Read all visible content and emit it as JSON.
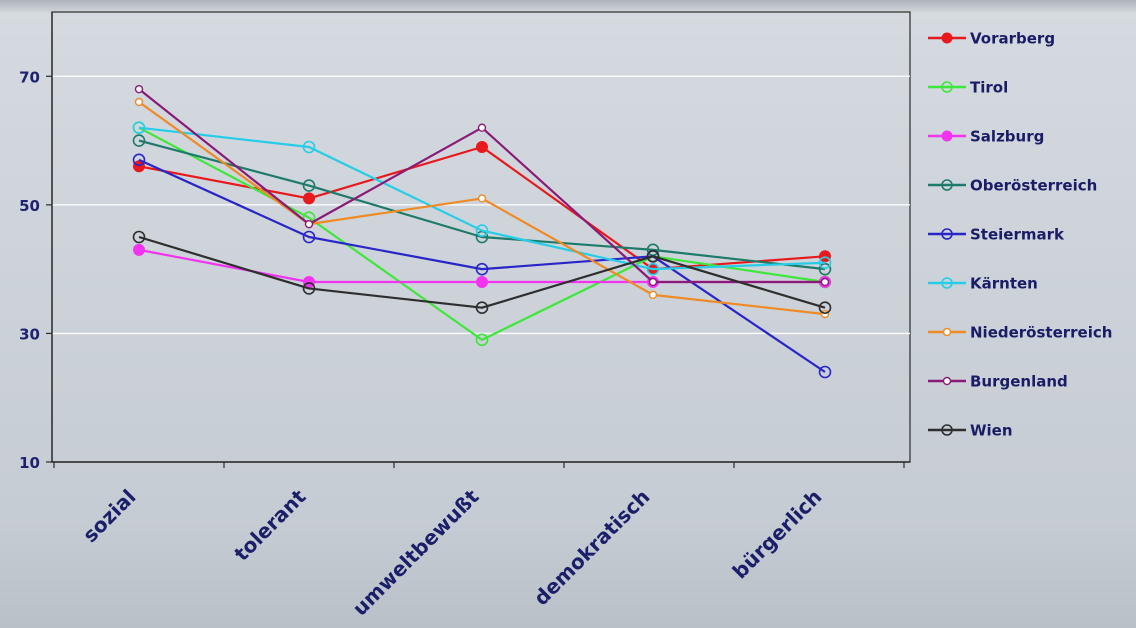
{
  "chart_data": {
    "type": "line",
    "categories": [
      "sozial",
      "tolerant",
      "umweltbewußt",
      "demokratisch",
      "bürgerlich"
    ],
    "ylim": [
      10,
      80
    ],
    "yticks": [
      10,
      30,
      50,
      70
    ],
    "grid": true,
    "legend_position": "right",
    "series": [
      {
        "name": "Vorarberg",
        "color": "#e8191c",
        "marker": "filled",
        "values": [
          56,
          51,
          59,
          40,
          42
        ]
      },
      {
        "name": "Tirol",
        "color": "#3fe63b",
        "marker": "open",
        "values": [
          62,
          48,
          29,
          42,
          38
        ]
      },
      {
        "name": "Salzburg",
        "color": "#f233f0",
        "marker": "filled",
        "values": [
          43,
          38,
          38,
          38,
          38
        ]
      },
      {
        "name": "Oberösterreich",
        "color": "#1e7a6a",
        "marker": "open",
        "values": [
          60,
          53,
          45,
          43,
          40
        ]
      },
      {
        "name": "Steiermark",
        "color": "#2a25c8",
        "marker": "open",
        "values": [
          57,
          45,
          40,
          42,
          24
        ]
      },
      {
        "name": "Kärnten",
        "color": "#27cde6",
        "marker": "open",
        "values": [
          62,
          59,
          46,
          40,
          41
        ]
      },
      {
        "name": "Niederösterreich",
        "color": "#f08a24",
        "marker": "small",
        "values": [
          66,
          47,
          51,
          36,
          33
        ]
      },
      {
        "name": "Burgenland",
        "color": "#8a1a78",
        "marker": "small",
        "values": [
          68,
          47,
          62,
          38,
          38
        ]
      },
      {
        "name": "Wien",
        "color": "#2e2e2e",
        "marker": "open",
        "values": [
          45,
          37,
          34,
          42,
          34
        ]
      }
    ]
  }
}
